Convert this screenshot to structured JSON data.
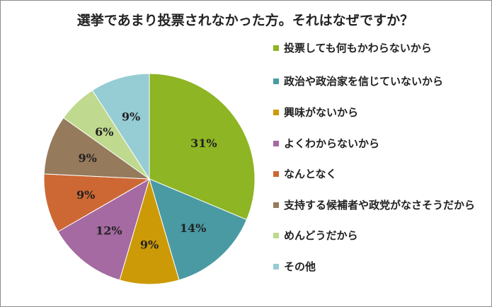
{
  "chart_data": {
    "type": "pie",
    "title": "選挙であまり投票されなかった方。それはなぜですか？",
    "legend_position": "right",
    "slices": [
      {
        "label": "投票しても何もかわらないから",
        "value": 31,
        "value_label": "31%",
        "color": "#8db524"
      },
      {
        "label": "政治や政治家を信じていないから",
        "value": 14,
        "value_label": "14%",
        "color": "#4a9aa3"
      },
      {
        "label": "興味がないから",
        "value": 9,
        "value_label": "9%",
        "color": "#cc9a06"
      },
      {
        "label": "よくわからないから",
        "value": 12,
        "value_label": "12%",
        "color": "#a46aa1"
      },
      {
        "label": "なんとなく",
        "value": 9,
        "value_label": "9%",
        "color": "#cd6834"
      },
      {
        "label": "支持する候補者や政党がなさそうだから",
        "value": 9,
        "value_label": "9%",
        "color": "#957a5c"
      },
      {
        "label": "めんどうだから",
        "value": 6,
        "value_label": "6%",
        "color": "#bfd98e"
      },
      {
        "label": "その他",
        "value": 9,
        "value_label": "9%",
        "color": "#96ccd4"
      }
    ]
  }
}
